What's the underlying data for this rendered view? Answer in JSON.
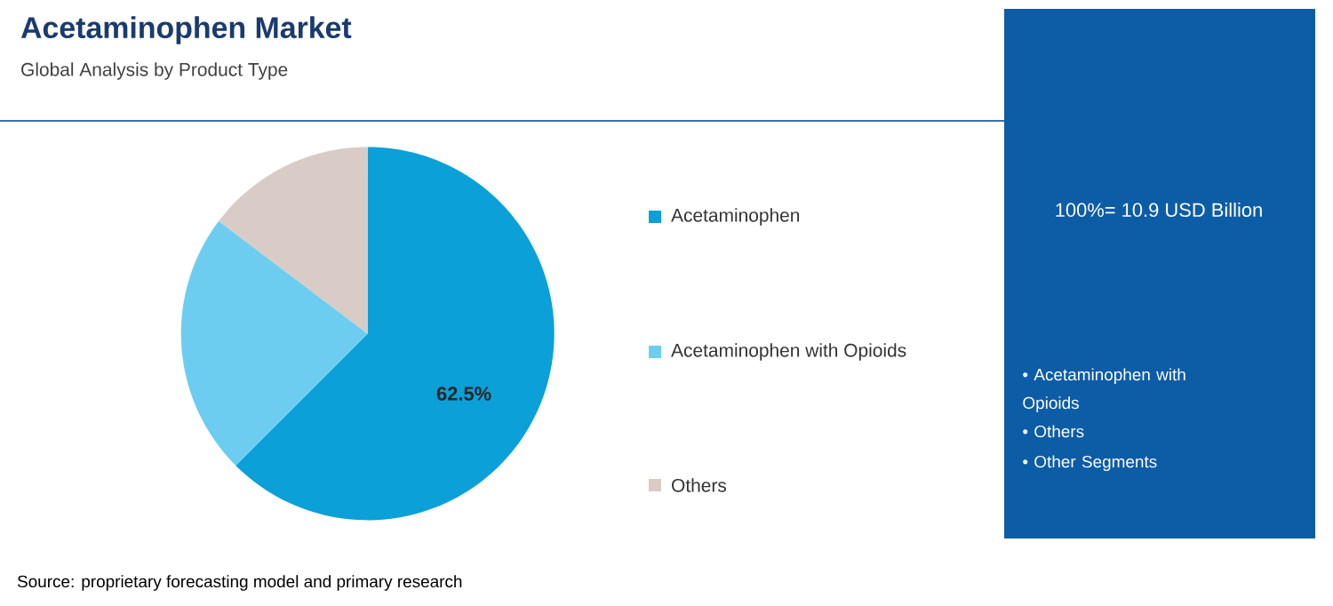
{
  "chart_data": {
    "type": "pie",
    "title": "Acetaminophen Market",
    "subtitle": "Global Analysis by Product Type",
    "categories": [
      "Acetaminophen",
      "Acetaminophen with Opioids",
      "Others"
    ],
    "values": [
      62.5,
      22.8,
      14.7
    ],
    "colors": [
      "#0ba0d8",
      "#6dcdf0",
      "#d9cbc6"
    ],
    "value_labels": [
      "62.5%",
      null,
      null
    ],
    "legend": "right",
    "annotations": [
      "100%= 10.9 USD Billion",
      "• Acetaminophen with Opioids",
      "• Others",
      "• Other Segments",
      "Source: proprietary forecasting model and primary research"
    ]
  }
}
